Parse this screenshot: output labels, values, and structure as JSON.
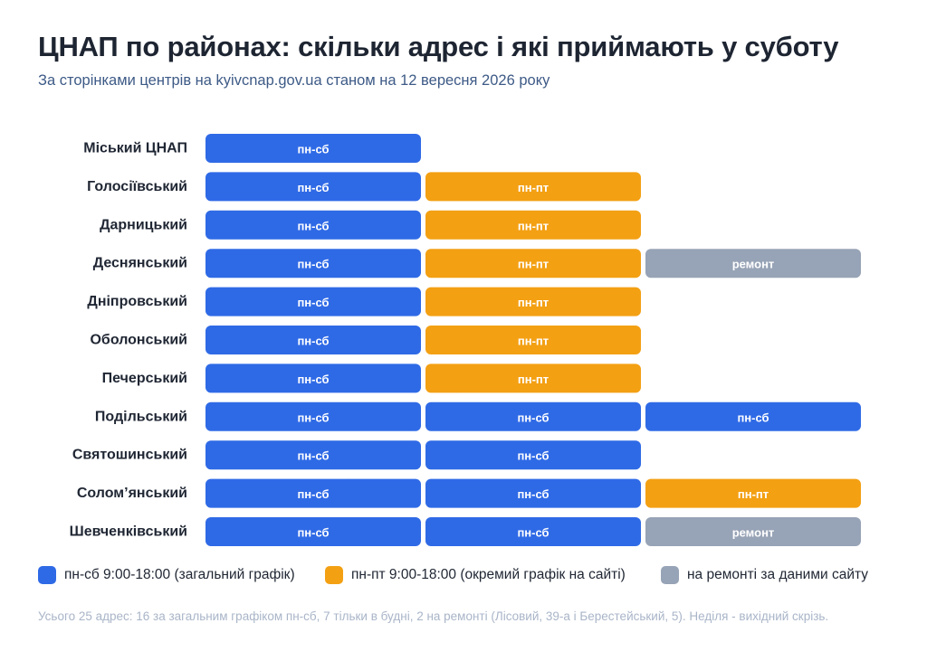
{
  "header": {
    "title": "ЦНАП по районах: скільки адрес і які приймають у суботу",
    "subtitle": "За сторінками центрів на kyivcnap.gov.ua станом на 12 вересня 2026 року"
  },
  "colors": {
    "sat": "#2f6ae6",
    "weekdays": "#f3a013",
    "repair": "#97a3b6"
  },
  "legend": [
    {
      "key": "sat",
      "label": "пн-сб 9:00-18:00 (загальний графік)"
    },
    {
      "key": "weekdays",
      "label": "пн-пт 9:00-18:00 (окремий графік на сайті)"
    },
    {
      "key": "repair",
      "label": "на ремонті за даними сайту"
    }
  ],
  "chart_data": {
    "type": "table",
    "category_labels": {
      "sat": "пн-сб",
      "weekdays": "пн-пт",
      "repair": "ремонт"
    },
    "rows": [
      {
        "district": "Міський ЦНАП",
        "centers": [
          "sat"
        ]
      },
      {
        "district": "Голосіївський",
        "centers": [
          "sat",
          "weekdays"
        ]
      },
      {
        "district": "Дарницький",
        "centers": [
          "sat",
          "weekdays"
        ]
      },
      {
        "district": "Деснянський",
        "centers": [
          "sat",
          "weekdays",
          "repair"
        ]
      },
      {
        "district": "Дніпровський",
        "centers": [
          "sat",
          "weekdays"
        ]
      },
      {
        "district": "Оболонський",
        "centers": [
          "sat",
          "weekdays"
        ]
      },
      {
        "district": "Печерський",
        "centers": [
          "sat",
          "weekdays"
        ]
      },
      {
        "district": "Подільський",
        "centers": [
          "sat",
          "sat",
          "sat"
        ]
      },
      {
        "district": "Святошинський",
        "centers": [
          "sat",
          "sat"
        ]
      },
      {
        "district": "Солом’янський",
        "centers": [
          "sat",
          "sat",
          "weekdays"
        ]
      },
      {
        "district": "Шевченківський",
        "centers": [
          "sat",
          "sat",
          "repair"
        ]
      }
    ]
  },
  "footnote": "Усього 25 адрес: 16 за загальним графіком пн-сб, 7 тільки в будні, 2 на ремонті (Лісовий, 39-а і Берестейський, 5). Неділя - вихідний скрізь."
}
